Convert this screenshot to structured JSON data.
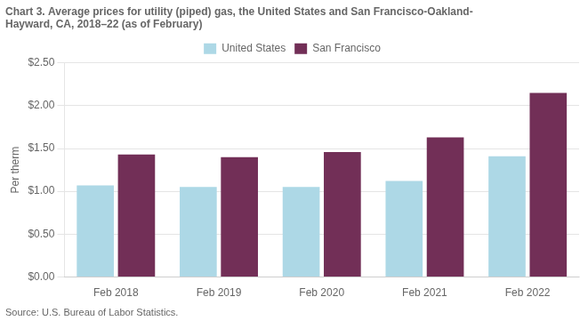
{
  "chart_data": {
    "type": "bar",
    "title": "Chart 3. Average prices for utility (piped) gas, the United States and San Francisco-Oakland-\nHayward, CA, 2018–22 (as of February)",
    "y_label": "Per therm",
    "source": "Source: U.S. Bureau of Labor Statistics.",
    "categories": [
      "Feb 2018",
      "Feb 2019",
      "Feb 2020",
      "Feb 2021",
      "Feb 2022"
    ],
    "series": [
      {
        "name": "United States",
        "color": "#add8e6",
        "values": [
          1.07,
          1.05,
          1.05,
          1.12,
          1.41
        ]
      },
      {
        "name": "San Francisco",
        "color": "#722f57",
        "values": [
          1.43,
          1.4,
          1.46,
          1.63,
          2.15
        ]
      }
    ],
    "ylim": [
      0.0,
      2.5
    ],
    "yticks": [
      {
        "value": 0.0,
        "label": "$0.00"
      },
      {
        "value": 0.5,
        "label": "$0.50"
      },
      {
        "value": 1.0,
        "label": "$1.00"
      },
      {
        "value": 1.5,
        "label": "$1.50"
      },
      {
        "value": 2.0,
        "label": "$2.00"
      },
      {
        "value": 2.5,
        "label": "$2.50"
      }
    ],
    "grid": true,
    "legend": "top"
  }
}
